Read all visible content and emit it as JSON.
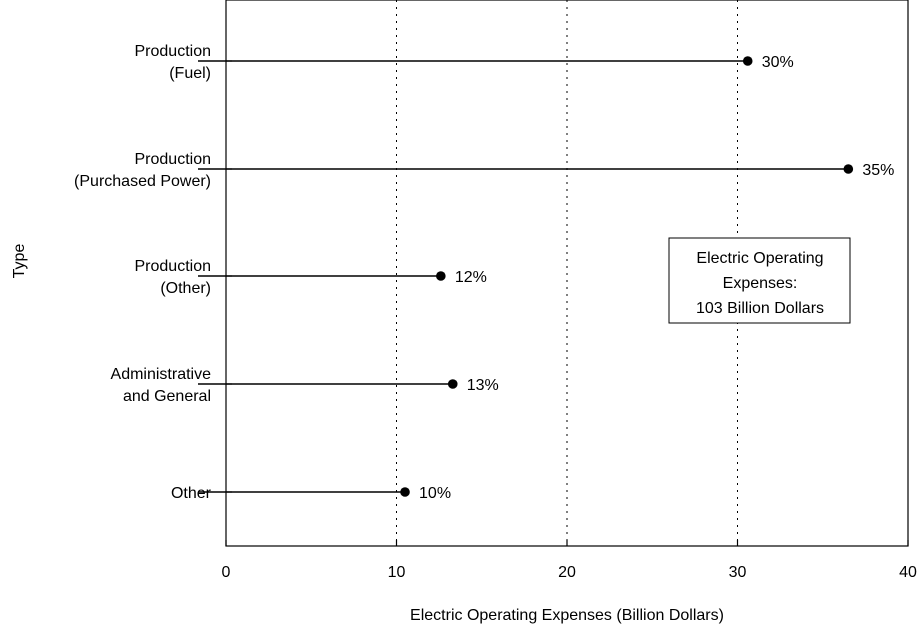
{
  "chart_data": {
    "type": "lollipop",
    "xlabel": "Electric Operating Expenses (Billion Dollars)",
    "ylabel": "Type",
    "xlim": [
      0,
      40
    ],
    "xticks": [
      "0",
      "10",
      "20",
      "30",
      "40"
    ],
    "grid": "vertical dotted",
    "categories": [
      [
        "Production",
        "(Fuel)"
      ],
      [
        "Production",
        "(Purchased Power)"
      ],
      [
        "Production",
        "(Other)"
      ],
      [
        "Administrative",
        "and General"
      ],
      [
        "Other"
      ]
    ],
    "values": [
      30.6,
      36.5,
      12.6,
      13.3,
      10.5
    ],
    "labels": [
      "30%",
      "35%",
      "12%",
      "13%",
      "10%"
    ],
    "annotation": [
      "Electric Operating",
      "Expenses:",
      "103 Billion Dollars"
    ]
  }
}
